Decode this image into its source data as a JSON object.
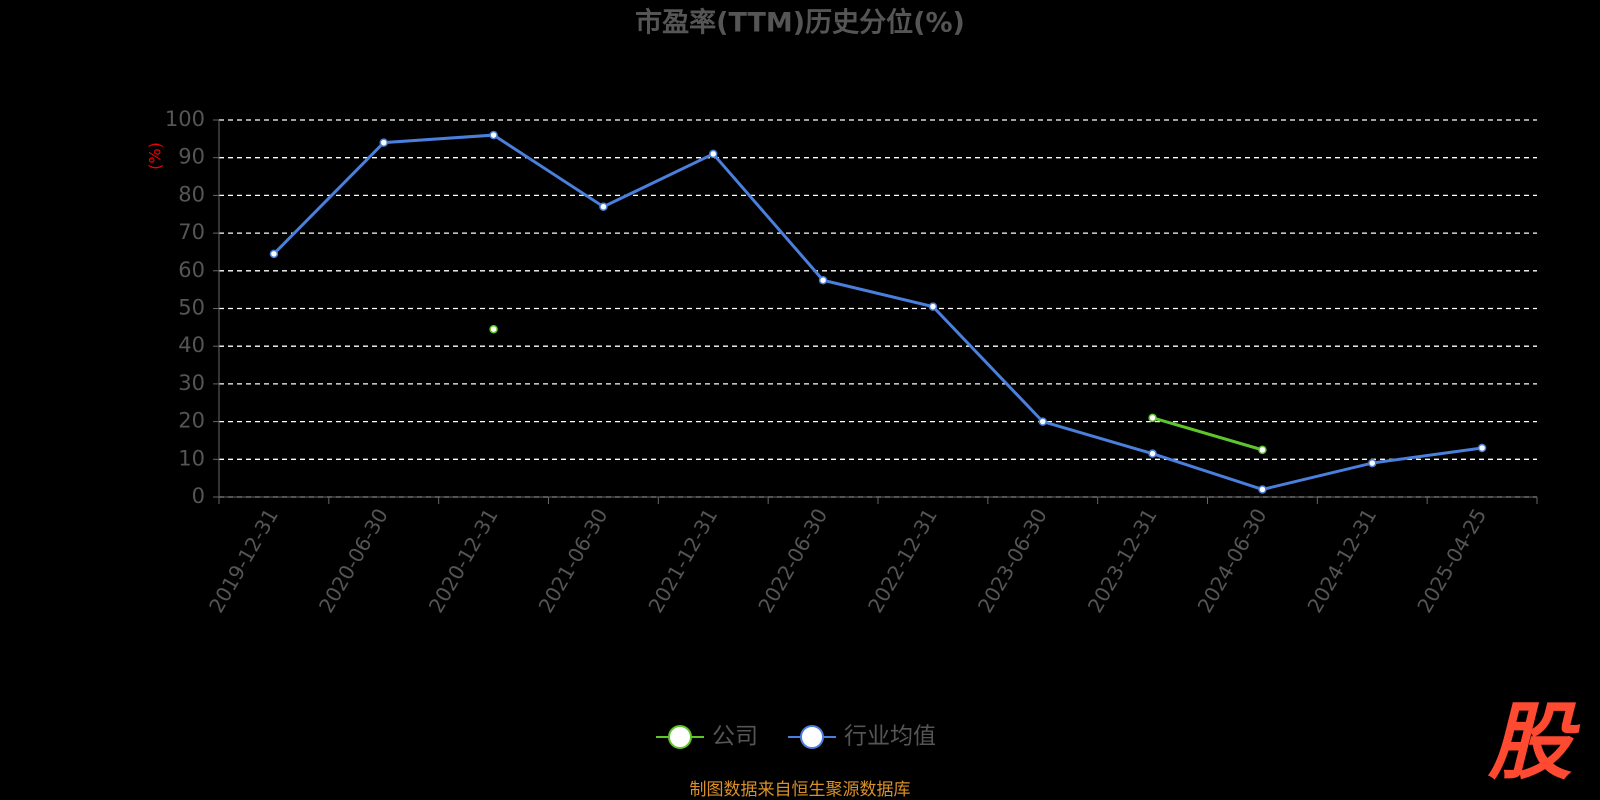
{
  "chart_data": {
    "type": "line",
    "title": "市盈率(TTM)历史分位(%)",
    "y_label": "(%)",
    "categories": [
      "2019-12-31",
      "2020-06-30",
      "2020-12-31",
      "2021-06-30",
      "2021-12-31",
      "2022-06-30",
      "2022-12-31",
      "2023-06-30",
      "2023-12-31",
      "2024-06-30",
      "2024-12-31",
      "2025-04-25"
    ],
    "series": [
      {
        "name": "公司",
        "color": "#5ec52b",
        "values": [
          null,
          null,
          44.5,
          null,
          null,
          null,
          null,
          null,
          21,
          12.5,
          null,
          null
        ]
      },
      {
        "name": "行业均值",
        "color": "#4a7fdc",
        "values": [
          64.5,
          94,
          96,
          77,
          91,
          57.5,
          50.5,
          20,
          11.5,
          2,
          9,
          13
        ]
      }
    ],
    "ylim": [
      0,
      100
    ],
    "yticks": [
      0,
      10,
      20,
      30,
      40,
      50,
      60,
      70,
      80,
      90,
      100
    ],
    "grid": true,
    "legend": "bottom",
    "source": "制图数据来自恒生聚源数据库",
    "logo": "股"
  }
}
